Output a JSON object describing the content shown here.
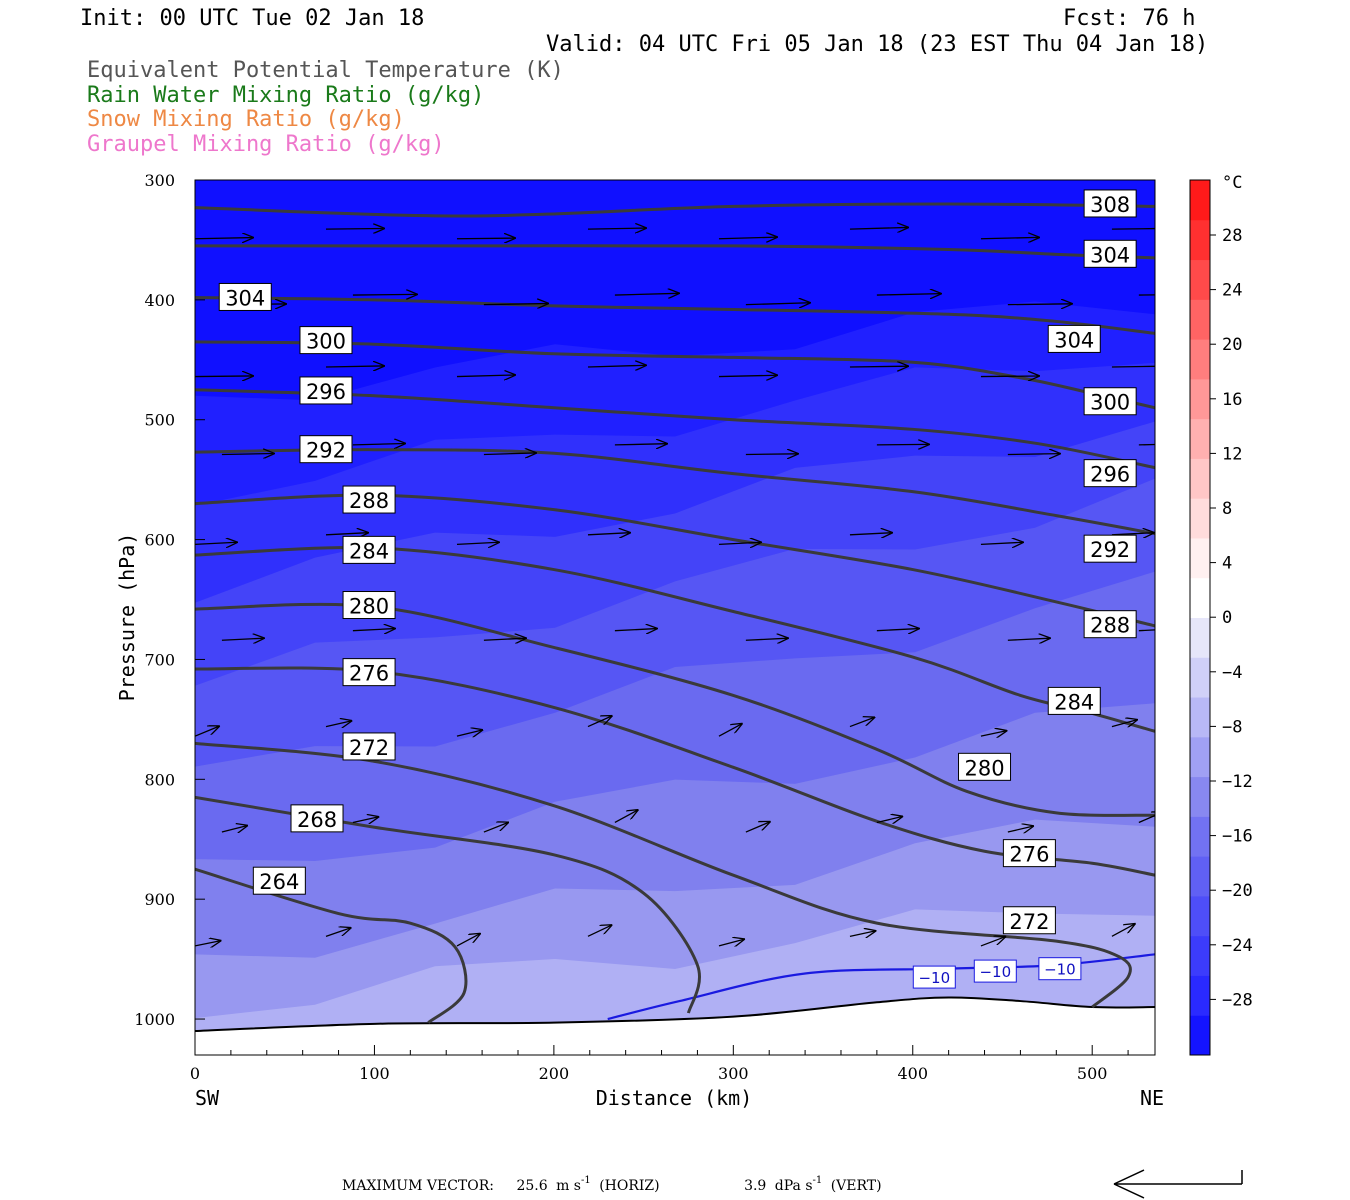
{
  "header": {
    "init": "Init: 00 UTC Tue 02 Jan 18",
    "fcst": "Fcst:   76 h",
    "valid": "Valid: 04 UTC Fri 05 Jan 18 (23 EST Thu 04 Jan 18)"
  },
  "legend": [
    {
      "text": "Equivalent Potential Temperature (K)",
      "color": "#555555"
    },
    {
      "text": "Rain Water Mixing Ratio (g/kg)",
      "color": "#1a7a1a"
    },
    {
      "text": "Snow Mixing Ratio (g/kg)",
      "color": "#ee8844"
    },
    {
      "text": "Graupel Mixing Ratio (g/kg)",
      "color": "#ee77cc"
    }
  ],
  "footer": {
    "prefix": "MAXIMUM VECTOR:",
    "horiz_value": "25.6",
    "horiz_unit": "m s",
    "horiz_suffix": "(HORIZ)",
    "vert_value": "3.9",
    "vert_unit": "dPa s",
    "vert_suffix": "(VERT)",
    "exponent": "-1"
  },
  "colorbar": {
    "unit": "°C",
    "labels": [
      "28",
      "24",
      "20",
      "16",
      "12",
      "8",
      "4",
      "0",
      "−4",
      "−8",
      "−12",
      "−16",
      "−20",
      "−24",
      "−28"
    ],
    "colors": [
      "#1414ff",
      "#2a2aff",
      "#3c3cfc",
      "#4e4ef8",
      "#6060f4",
      "#7272f2",
      "#8888f0",
      "#a0a0f4",
      "#b8b8f6",
      "#d0d0f8",
      "#e6e6fa",
      "#ffffff",
      "#fff0f0",
      "#ffdcdc",
      "#ffc6c6",
      "#ffb0b0",
      "#ff9898",
      "#ff7e7e",
      "#ff6464",
      "#ff4a4a",
      "#ff3030",
      "#ff1a1a"
    ]
  },
  "chart_data": {
    "type": "cross-section",
    "xlabel": "Distance (km)",
    "ylabel": "Pressure (hPa)",
    "x_ticks": [
      "0",
      "100",
      "200",
      "300",
      "400",
      "500"
    ],
    "y_ticks": [
      "300",
      "400",
      "500",
      "600",
      "700",
      "800",
      "900",
      "1000"
    ],
    "xlim": [
      0,
      535
    ],
    "ylim": [
      300,
      1030
    ],
    "y_scale": "linear",
    "end_labels": {
      "left": "SW",
      "right": "NE"
    },
    "temperature_fill_colors": [
      "#1010ff",
      "#2020ff",
      "#3030fc",
      "#4444f8",
      "#5656f4",
      "#6a6af0",
      "#8080ee",
      "#9898f0",
      "#b0b0f4"
    ],
    "theta_e_contours": [
      {
        "value": 308,
        "label": "308",
        "points": [
          [
            0,
            323
          ],
          [
            150,
            330
          ],
          [
            300,
            322
          ],
          [
            420,
            320
          ],
          [
            535,
            322
          ]
        ]
      },
      {
        "value": 304,
        "label": "304",
        "points": [
          [
            0,
            355
          ],
          [
            150,
            355
          ],
          [
            300,
            355
          ],
          [
            420,
            358
          ],
          [
            480,
            362
          ],
          [
            535,
            365
          ]
        ]
      },
      {
        "value": 304,
        "label": "304",
        "points": [
          [
            0,
            398
          ],
          [
            100,
            400
          ],
          [
            200,
            405
          ],
          [
            300,
            408
          ],
          [
            420,
            412
          ],
          [
            480,
            418
          ],
          [
            535,
            428
          ]
        ]
      },
      {
        "value": 300,
        "label": "300",
        "points": [
          [
            0,
            435
          ],
          [
            100,
            437
          ],
          [
            200,
            445
          ],
          [
            300,
            448
          ],
          [
            400,
            452
          ],
          [
            460,
            465
          ],
          [
            500,
            478
          ],
          [
            535,
            490
          ]
        ]
      },
      {
        "value": 296,
        "label": "296",
        "points": [
          [
            0,
            475
          ],
          [
            100,
            480
          ],
          [
            200,
            490
          ],
          [
            300,
            500
          ],
          [
            400,
            508
          ],
          [
            470,
            520
          ],
          [
            535,
            540
          ]
        ]
      },
      {
        "value": 292,
        "label": "292",
        "points": [
          [
            0,
            527
          ],
          [
            100,
            525
          ],
          [
            200,
            528
          ],
          [
            300,
            545
          ],
          [
            400,
            560
          ],
          [
            480,
            580
          ],
          [
            535,
            595
          ]
        ]
      },
      {
        "value": 288,
        "label": "288",
        "points": [
          [
            0,
            570
          ],
          [
            100,
            563
          ],
          [
            200,
            575
          ],
          [
            300,
            600
          ],
          [
            400,
            625
          ],
          [
            480,
            652
          ],
          [
            535,
            672
          ]
        ]
      },
      {
        "value": 284,
        "label": "284",
        "points": [
          [
            0,
            613
          ],
          [
            100,
            607
          ],
          [
            200,
            625
          ],
          [
            300,
            660
          ],
          [
            400,
            698
          ],
          [
            460,
            730
          ],
          [
            500,
            745
          ],
          [
            535,
            760
          ]
        ]
      },
      {
        "value": 280,
        "label": "280",
        "points": [
          [
            0,
            658
          ],
          [
            100,
            656
          ],
          [
            200,
            690
          ],
          [
            300,
            730
          ],
          [
            380,
            775
          ],
          [
            430,
            810
          ],
          [
            480,
            828
          ],
          [
            535,
            830
          ]
        ]
      },
      {
        "value": 276,
        "label": "276",
        "points": [
          [
            0,
            708
          ],
          [
            100,
            710
          ],
          [
            200,
            740
          ],
          [
            300,
            790
          ],
          [
            380,
            835
          ],
          [
            440,
            860
          ],
          [
            500,
            870
          ],
          [
            535,
            880
          ]
        ]
      },
      {
        "value": 272,
        "label": "272",
        "points": [
          [
            0,
            770
          ],
          [
            100,
            785
          ],
          [
            200,
            822
          ],
          [
            300,
            880
          ],
          [
            380,
            920
          ],
          [
            480,
            935
          ],
          [
            515,
            948
          ],
          [
            520,
            965
          ],
          [
            500,
            990
          ]
        ]
      },
      {
        "value": 268,
        "label": "268",
        "points": [
          [
            0,
            815
          ],
          [
            100,
            840
          ],
          [
            200,
            863
          ],
          [
            250,
            895
          ],
          [
            280,
            955
          ],
          [
            275,
            995
          ]
        ]
      },
      {
        "value": 264,
        "label": "264",
        "points": [
          [
            0,
            875
          ],
          [
            80,
            912
          ],
          [
            120,
            920
          ],
          [
            145,
            940
          ],
          [
            150,
            978
          ],
          [
            130,
            1003
          ]
        ]
      }
    ],
    "temperature_contour": {
      "value": -10,
      "label": "−10",
      "points": [
        [
          230,
          1000
        ],
        [
          270,
          985
        ],
        [
          340,
          962
        ],
        [
          420,
          958
        ],
        [
          480,
          955
        ],
        [
          535,
          946
        ]
      ]
    },
    "terrain": {
      "points": [
        [
          0,
          1010
        ],
        [
          100,
          1004
        ],
        [
          200,
          1003
        ],
        [
          300,
          998
        ],
        [
          380,
          986
        ],
        [
          420,
          982
        ],
        [
          460,
          985
        ],
        [
          500,
          990
        ],
        [
          535,
          990
        ]
      ]
    },
    "max_vector": {
      "horiz_m_s": 25.6,
      "vert_dPa_s": 3.9
    }
  }
}
